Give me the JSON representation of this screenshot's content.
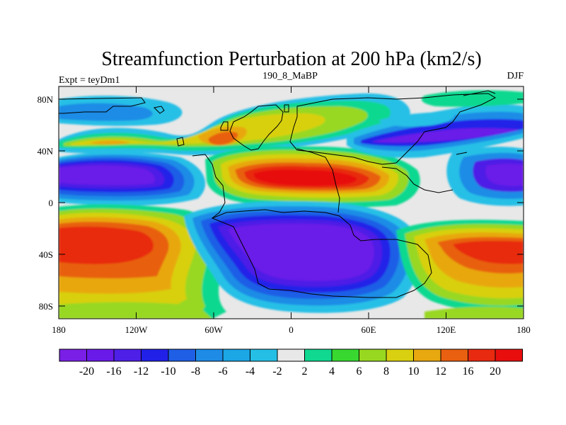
{
  "title": "Streamfunction Perturbation at 200 hPa (km2/s)",
  "left_string": "Expt = teyDm1",
  "center_string": "190_8_MaBP",
  "right_string": "DJF",
  "map": {
    "lon_range": [
      -180,
      180
    ],
    "lat_range": [
      -90,
      90
    ],
    "lat_ticks": [
      "80N",
      "40N",
      "0",
      "40S",
      "80S"
    ],
    "lon_ticks": [
      "180",
      "120W",
      "60W",
      "0",
      "60E",
      "120E",
      "180"
    ]
  },
  "colorbar": {
    "labels": [
      "-20",
      "-16",
      "-12",
      "-10",
      "-8",
      "-6",
      "-4",
      "-2",
      "2",
      "4",
      "6",
      "8",
      "10",
      "12",
      "16",
      "20"
    ],
    "colors": [
      "#7A1FE6",
      "#6A1AE8",
      "#4E1FE6",
      "#2020E8",
      "#1E5FE6",
      "#1E8CE6",
      "#1BA6E6",
      "#25BFE6",
      "#E8E8E8",
      "#10D890",
      "#38D830",
      "#98D820",
      "#D8D010",
      "#E8A810",
      "#E86010",
      "#E82A10",
      "#E80E0E"
    ]
  }
}
